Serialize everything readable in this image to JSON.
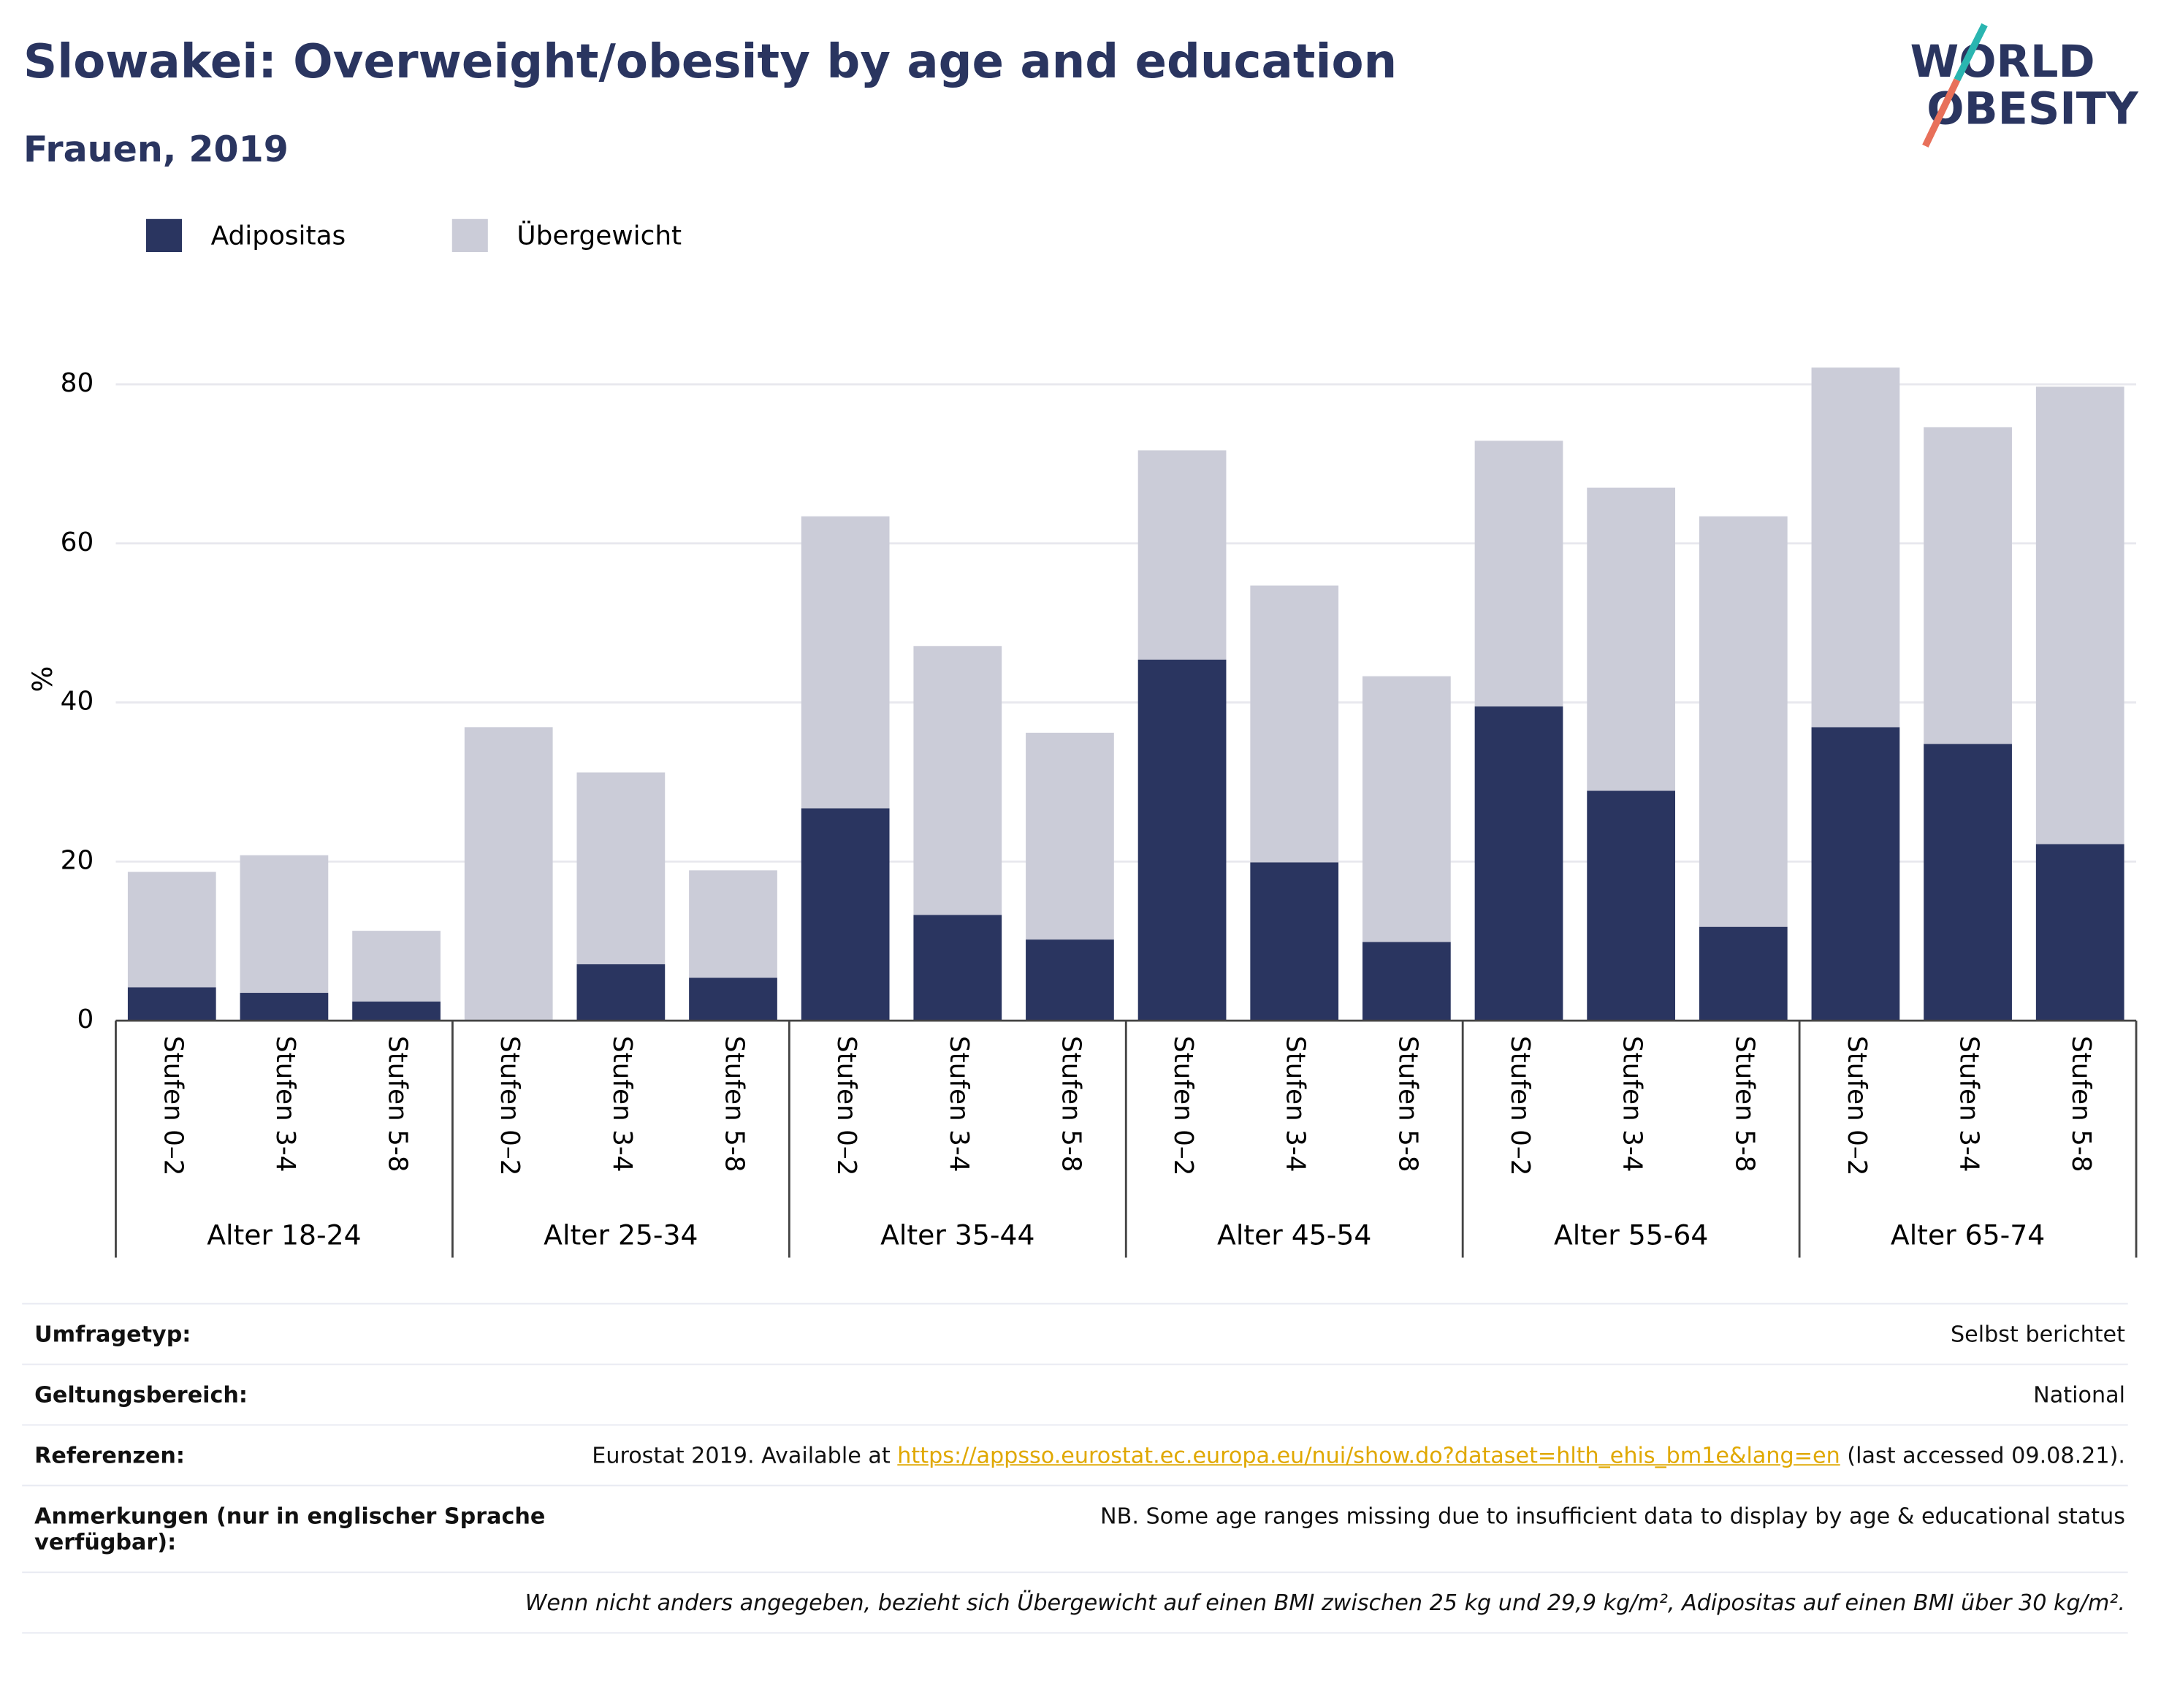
{
  "chart_data": {
    "type": "stacked_bar",
    "title": "Slowakei: Overweight/obesity by age and education",
    "subtitle": "Frauen, 2019",
    "y_label": "%",
    "logo": {
      "line1": "WORLD",
      "line2": "OBESITY"
    },
    "groups": [
      "Alter 18-24",
      "Alter 25-34",
      "Alter 35-44",
      "Alter 45-54",
      "Alter 55-64",
      "Alter 65-74"
    ],
    "categories": [
      "Stufen 0–2",
      "Stufen 3-4",
      "Stufen 5-8",
      "Stufen 0–2",
      "Stufen 3-4",
      "Stufen 5-8",
      "Stufen 0–2",
      "Stufen 3-4",
      "Stufen 5-8",
      "Stufen 0–2",
      "Stufen 3-4",
      "Stufen 5-8",
      "Stufen 0–2",
      "Stufen 3-4",
      "Stufen 5-8",
      "Stufen 0–2",
      "Stufen 3-4",
      "Stufen 5-8"
    ],
    "series": [
      {
        "name": "Adipositas",
        "color": "#2a3560",
        "values": [
          4.2,
          3.5,
          2.4,
          0,
          7.1,
          5.4,
          26.7,
          13.3,
          10.2,
          45.4,
          19.9,
          9.9,
          39.5,
          28.9,
          11.8,
          36.9,
          34.8,
          22.2
        ]
      },
      {
        "name": "Übergewicht",
        "color": "#cbccd8",
        "values": [
          14.5,
          17.3,
          8.9,
          36.9,
          24.1,
          13.5,
          36.7,
          33.8,
          26.0,
          26.3,
          34.8,
          33.4,
          33.4,
          38.1,
          51.6,
          45.2,
          39.8,
          57.5
        ]
      }
    ],
    "ylim": [
      0,
      87
    ],
    "yticks": [
      0,
      20,
      40,
      60,
      80
    ],
    "grid": true
  },
  "info": {
    "rows": [
      {
        "label": "Umfragetyp:",
        "value": "Selbst berichtet"
      },
      {
        "label": "Geltungsbereich:",
        "value": "National"
      },
      {
        "label": "Referenzen:",
        "value": "Eurostat 2019. Available at ",
        "link": "https://appsso.eurostat.ec.europa.eu/nui/show.do?dataset=hlth_ehis_bm1e&lang=en",
        "value_after": " (last accessed 09.08.21)."
      },
      {
        "label": "Anmerkungen (nur in englischer Sprache verfügbar):",
        "value": "NB. Some age ranges missing due to insufficient data to display by age & educational status"
      }
    ],
    "footnote": "Wenn nicht anders angegeben, bezieht sich Übergewicht auf einen BMI zwischen 25 kg und 29,9 kg/m², Adipositas auf einen BMI über 30 kg/m²."
  }
}
